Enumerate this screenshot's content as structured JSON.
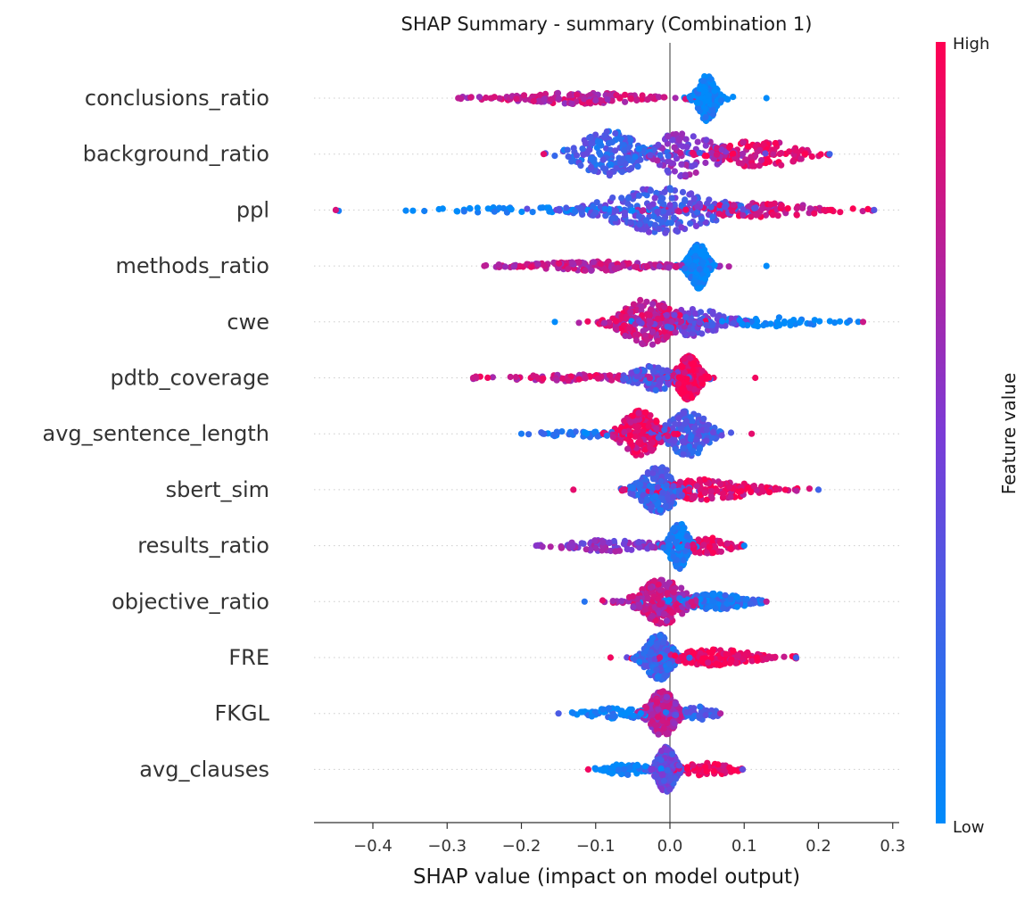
{
  "chart_data": {
    "type": "scatter",
    "subtype": "shap-beeswarm",
    "title": "SHAP Summary - summary (Combination 1)",
    "xlabel": "SHAP value (impact on model output)",
    "xlim": [
      -0.48,
      0.31
    ],
    "xticks": [
      -0.4,
      -0.3,
      -0.2,
      -0.1,
      0.0,
      0.1,
      0.2,
      0.3
    ],
    "xtick_labels": [
      "−0.4",
      "−0.3",
      "−0.2",
      "−0.1",
      "0.0",
      "0.1",
      "0.2",
      "0.3"
    ],
    "colorbar": {
      "title": "Feature value",
      "high": "High",
      "low": "Low",
      "low_color": "#008bfb",
      "mid_color": "#7b3bd6",
      "high_color": "#ff0052"
    },
    "zero_line_color": "#999999",
    "features": [
      {
        "name": "conclusions_ratio",
        "min": -0.285,
        "max": 0.13,
        "clusters": [
          {
            "c": 0.05,
            "s": 0.01,
            "w": 0.62,
            "h": 1.0,
            "v": 0.0
          },
          {
            "c": -0.12,
            "s": 0.07,
            "w": 0.38,
            "h": 0.25,
            "v": 0.75
          }
        ]
      },
      {
        "name": "background_ratio",
        "min": -0.17,
        "max": 0.215,
        "clusters": [
          {
            "c": -0.08,
            "s": 0.035,
            "w": 0.4,
            "h": 1.0,
            "v": 0.25
          },
          {
            "c": 0.02,
            "s": 0.035,
            "w": 0.3,
            "h": 1.0,
            "v": 0.55
          },
          {
            "c": 0.12,
            "s": 0.045,
            "w": 0.3,
            "h": 0.6,
            "v": 0.9
          }
        ]
      },
      {
        "name": "ppl",
        "min": -0.45,
        "max": 0.275,
        "clusters": [
          {
            "c": -0.01,
            "s": 0.06,
            "w": 0.6,
            "h": 1.0,
            "v": 0.35
          },
          {
            "c": -0.2,
            "s": 0.1,
            "w": 0.15,
            "h": 0.12,
            "v": 0.0
          },
          {
            "c": 0.12,
            "s": 0.07,
            "w": 0.25,
            "h": 0.3,
            "v": 0.85
          }
        ]
      },
      {
        "name": "methods_ratio",
        "min": -0.25,
        "max": 0.13,
        "clusters": [
          {
            "c": 0.038,
            "s": 0.01,
            "w": 0.62,
            "h": 1.0,
            "v": 0.0
          },
          {
            "c": -0.1,
            "s": 0.07,
            "w": 0.38,
            "h": 0.2,
            "v": 0.75
          }
        ]
      },
      {
        "name": "cwe",
        "min": -0.155,
        "max": 0.26,
        "clusters": [
          {
            "c": -0.03,
            "s": 0.03,
            "w": 0.55,
            "h": 1.0,
            "v": 0.8
          },
          {
            "c": 0.03,
            "s": 0.035,
            "w": 0.3,
            "h": 0.6,
            "v": 0.4
          },
          {
            "c": 0.13,
            "s": 0.06,
            "w": 0.15,
            "h": 0.2,
            "v": 0.0
          }
        ]
      },
      {
        "name": "pdtb_coverage",
        "min": -0.265,
        "max": 0.115,
        "clusters": [
          {
            "c": 0.025,
            "s": 0.012,
            "w": 0.55,
            "h": 1.0,
            "v": 0.95
          },
          {
            "c": -0.02,
            "s": 0.025,
            "w": 0.25,
            "h": 0.55,
            "v": 0.35
          },
          {
            "c": -0.13,
            "s": 0.07,
            "w": 0.2,
            "h": 0.15,
            "v": 0.8
          }
        ]
      },
      {
        "name": "avg_sentence_length",
        "min": -0.2,
        "max": 0.11,
        "clusters": [
          {
            "c": -0.04,
            "s": 0.02,
            "w": 0.45,
            "h": 1.0,
            "v": 0.9
          },
          {
            "c": 0.025,
            "s": 0.022,
            "w": 0.45,
            "h": 1.0,
            "v": 0.3
          },
          {
            "c": -0.12,
            "s": 0.04,
            "w": 0.1,
            "h": 0.15,
            "v": 0.1
          }
        ]
      },
      {
        "name": "sbert_sim",
        "min": -0.13,
        "max": 0.2,
        "clusters": [
          {
            "c": -0.015,
            "s": 0.02,
            "w": 0.55,
            "h": 1.0,
            "v": 0.25
          },
          {
            "c": 0.05,
            "s": 0.05,
            "w": 0.45,
            "h": 0.45,
            "v": 0.9
          }
        ]
      },
      {
        "name": "results_ratio",
        "min": -0.18,
        "max": 0.1,
        "clusters": [
          {
            "c": 0.012,
            "s": 0.01,
            "w": 0.55,
            "h": 1.0,
            "v": 0.05
          },
          {
            "c": 0.05,
            "s": 0.025,
            "w": 0.2,
            "h": 0.35,
            "v": 0.9
          },
          {
            "c": -0.08,
            "s": 0.05,
            "w": 0.25,
            "h": 0.25,
            "v": 0.55
          }
        ]
      },
      {
        "name": "objective_ratio",
        "min": -0.115,
        "max": 0.13,
        "clusters": [
          {
            "c": -0.01,
            "s": 0.025,
            "w": 0.6,
            "h": 1.0,
            "v": 0.75
          },
          {
            "c": 0.06,
            "s": 0.035,
            "w": 0.4,
            "h": 0.35,
            "v": 0.15
          }
        ]
      },
      {
        "name": "FRE",
        "min": -0.08,
        "max": 0.17,
        "clusters": [
          {
            "c": -0.015,
            "s": 0.015,
            "w": 0.55,
            "h": 1.0,
            "v": 0.25
          },
          {
            "c": 0.06,
            "s": 0.045,
            "w": 0.45,
            "h": 0.35,
            "v": 0.95
          }
        ]
      },
      {
        "name": "FKGL",
        "min": -0.15,
        "max": 0.068,
        "clusters": [
          {
            "c": -0.01,
            "s": 0.015,
            "w": 0.7,
            "h": 1.0,
            "v": 0.7
          },
          {
            "c": -0.07,
            "s": 0.03,
            "w": 0.15,
            "h": 0.25,
            "v": 0.05
          },
          {
            "c": 0.04,
            "s": 0.02,
            "w": 0.15,
            "h": 0.3,
            "v": 0.3
          }
        ]
      },
      {
        "name": "avg_clauses",
        "min": -0.11,
        "max": 0.098,
        "clusters": [
          {
            "c": -0.005,
            "s": 0.01,
            "w": 0.65,
            "h": 1.0,
            "v": 0.4
          },
          {
            "c": -0.06,
            "s": 0.025,
            "w": 0.15,
            "h": 0.25,
            "v": 0.0
          },
          {
            "c": 0.05,
            "s": 0.025,
            "w": 0.2,
            "h": 0.3,
            "v": 0.95
          }
        ]
      }
    ]
  }
}
